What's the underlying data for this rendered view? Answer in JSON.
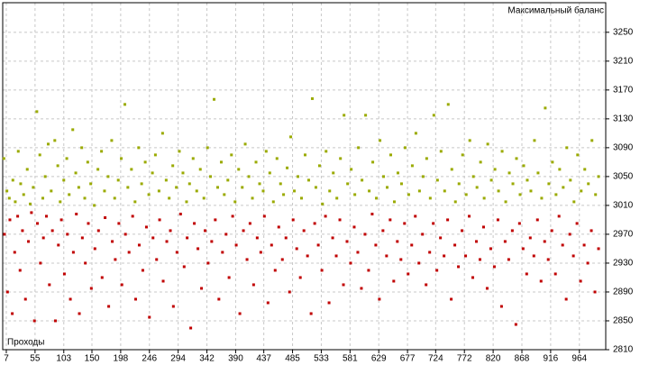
{
  "chart_data": {
    "type": "scatter",
    "title": "Максимальный баланс",
    "x_label": "Проходы",
    "xlim": [
      1,
      1008
    ],
    "xticks": [
      7,
      55,
      103,
      150,
      198,
      246,
      294,
      342,
      390,
      437,
      485,
      533,
      581,
      629,
      677,
      724,
      772,
      820,
      868,
      916,
      964
    ],
    "ylim": [
      2810,
      3291
    ],
    "yticks": [
      2810,
      2850,
      2890,
      2930,
      2970,
      3010,
      3050,
      3090,
      3130,
      3170,
      3210,
      3250
    ],
    "grid": true,
    "series": [
      {
        "color": "#9aaa00",
        "x": [
          3,
          8,
          12,
          18,
          22,
          27,
          31,
          36,
          42,
          47,
          52,
          58,
          63,
          68,
          72,
          77,
          82,
          88,
          93,
          97,
          103,
          108,
          112,
          118,
          123,
          128,
          133,
          138,
          143,
          148,
          154,
          160,
          166,
          171,
          177,
          183,
          188,
          194,
          199,
          205,
          210,
          216,
          222,
          228,
          233,
          239,
          245,
          251,
          256,
          262,
          268,
          274,
          279,
          285,
          291,
          296,
          302,
          308,
          313,
          319,
          325,
          331,
          337,
          343,
          348,
          354,
          360,
          366,
          371,
          377,
          383,
          389,
          395,
          401,
          406,
          412,
          418,
          424,
          430,
          436,
          441,
          447,
          453,
          459,
          465,
          470,
          476,
          482,
          488,
          494,
          500,
          506,
          512,
          518,
          524,
          530,
          535,
          541,
          547,
          553,
          559,
          565,
          571,
          577,
          583,
          589,
          595,
          601,
          607,
          613,
          619,
          625,
          631,
          637,
          643,
          649,
          655,
          661,
          667,
          673,
          679,
          685,
          691,
          697,
          703,
          709,
          715,
          721,
          727,
          733,
          739,
          745,
          751,
          757,
          763,
          769,
          775,
          781,
          787,
          793,
          799,
          805,
          811,
          817,
          823,
          829,
          835,
          841,
          847,
          853,
          859,
          865,
          871,
          877,
          883,
          889,
          895,
          901,
          907,
          913,
          919,
          925,
          931,
          937,
          943,
          949,
          955,
          961,
          967,
          973,
          979,
          985,
          991,
          996
        ],
        "values": [
          3075,
          3030,
          3020,
          3045,
          3015,
          3085,
          3040,
          3025,
          3060,
          3012,
          3035,
          3140,
          3080,
          3020,
          3050,
          3095,
          3030,
          3100,
          3065,
          3015,
          3045,
          3075,
          3025,
          3115,
          3055,
          3035,
          3090,
          3020,
          3070,
          3040,
          3010,
          3060,
          3085,
          3030,
          3050,
          3100,
          3020,
          3045,
          3075,
          3150,
          3035,
          3060,
          3015,
          3090,
          3040,
          3070,
          3025,
          3055,
          3080,
          3030,
          3110,
          3045,
          3020,
          3065,
          3035,
          3085,
          3055,
          3015,
          3040,
          3075,
          3030,
          3060,
          3020,
          3090,
          3050,
          3157,
          3035,
          3070,
          3025,
          3045,
          3080,
          3015,
          3060,
          3035,
          3095,
          3050,
          3020,
          3070,
          3040,
          3030,
          3085,
          3055,
          3015,
          3075,
          3040,
          3025,
          3062,
          3105,
          3030,
          3050,
          3020,
          3080,
          3045,
          3158,
          3035,
          3065,
          3012,
          3085,
          3030,
          3055,
          3020,
          3075,
          3135,
          3040,
          3060,
          3025,
          3090,
          3045,
          3135,
          3030,
          3070,
          3020,
          3100,
          3050,
          3035,
          3080,
          3015,
          3055,
          3040,
          3090,
          3025,
          3065,
          3110,
          3030,
          3050,
          3075,
          3020,
          3135,
          3045,
          3085,
          3030,
          3150,
          3060,
          3015,
          3040,
          3080,
          3025,
          3100,
          3050,
          3035,
          3070,
          3020,
          3095,
          3045,
          3060,
          3030,
          3085,
          3015,
          3055,
          3040,
          3075,
          3025,
          3065,
          3045,
          3030,
          3100,
          3055,
          3020,
          3145,
          3040,
          3070,
          3025,
          3060,
          3035,
          3090,
          3045,
          3015,
          3080,
          3030,
          3060,
          3040,
          3100,
          3025,
          3050
        ]
      },
      {
        "color": "#c00000",
        "x": [
          4,
          9,
          13,
          17,
          21,
          26,
          30,
          34,
          39,
          44,
          49,
          54,
          59,
          64,
          69,
          74,
          79,
          84,
          89,
          94,
          99,
          104,
          109,
          114,
          119,
          124,
          129,
          134,
          139,
          144,
          149,
          155,
          161,
          167,
          172,
          178,
          184,
          189,
          195,
          200,
          206,
          212,
          218,
          223,
          229,
          235,
          241,
          246,
          252,
          258,
          263,
          269,
          275,
          281,
          286,
          292,
          298,
          304,
          309,
          315,
          321,
          327,
          333,
          339,
          344,
          350,
          356,
          362,
          368,
          374,
          379,
          385,
          391,
          397,
          403,
          409,
          414,
          420,
          426,
          432,
          438,
          444,
          450,
          456,
          462,
          468,
          474,
          480,
          486,
          492,
          498,
          504,
          510,
          516,
          522,
          528,
          534,
          540,
          546,
          552,
          558,
          564,
          570,
          576,
          582,
          588,
          594,
          600,
          606,
          612,
          618,
          624,
          630,
          636,
          642,
          648,
          654,
          660,
          666,
          672,
          678,
          684,
          690,
          696,
          702,
          708,
          714,
          720,
          726,
          732,
          738,
          744,
          750,
          756,
          762,
          768,
          774,
          780,
          786,
          792,
          798,
          804,
          810,
          816,
          822,
          828,
          834,
          840,
          846,
          852,
          858,
          864,
          870,
          876,
          882,
          888,
          894,
          900,
          906,
          912,
          918,
          924,
          930,
          936,
          942,
          948,
          954,
          960,
          966,
          972,
          978,
          984,
          990,
          996
        ],
        "values": [
          2970,
          2890,
          2990,
          2860,
          2945,
          2995,
          2920,
          2975,
          2880,
          2960,
          3000,
          2850,
          2985,
          2930,
          2965,
          2995,
          2900,
          2975,
          2850,
          2955,
          2990,
          2915,
          2970,
          2880,
          2945,
          2998,
          2860,
          2965,
          2930,
          2985,
          2895,
          2950,
          2975,
          2910,
          2993,
          2870,
          2960,
          2935,
          2985,
          2900,
          2970,
          2945,
          2995,
          2880,
          2955,
          2920,
          2980,
          2855,
          2965,
          2935,
          2990,
          2905,
          2960,
          2975,
          2870,
          2945,
          2998,
          2925,
          2965,
          2840,
          2985,
          2950,
          2895,
          2975,
          2930,
          2960,
          2990,
          2880,
          2945,
          2970,
          2910,
          2995,
          2955,
          2860,
          2975,
          2935,
          2985,
          2900,
          2965,
          2945,
          2995,
          2875,
          2955,
          2920,
          2980,
          2935,
          2965,
          2890,
          2990,
          2950,
          2910,
          2975,
          2940,
          2860,
          2985,
          2955,
          2920,
          2995,
          2875,
          2965,
          2940,
          2990,
          2900,
          2960,
          2930,
          2980,
          2945,
          2895,
          2970,
          2920,
          2998,
          2955,
          2880,
          2975,
          2940,
          2990,
          2905,
          2960,
          2935,
          2985,
          2915,
          2955,
          2995,
          2930,
          2970,
          2900,
          2945,
          2985,
          2920,
          2965,
          2940,
          2990,
          2880,
          2955,
          2925,
          2975,
          2940,
          2995,
          2910,
          2960,
          2935,
          2980,
          2895,
          2950,
          2925,
          2990,
          2870,
          2960,
          2935,
          2975,
          2845,
          2985,
          2950,
          2915,
          2965,
          2940,
          2990,
          2905,
          2960,
          2935,
          2975,
          2915,
          2995,
          2955,
          2880,
          2970,
          2940,
          2985,
          2905,
          2955,
          2930,
          2975,
          2890,
          2950
        ]
      }
    ]
  }
}
